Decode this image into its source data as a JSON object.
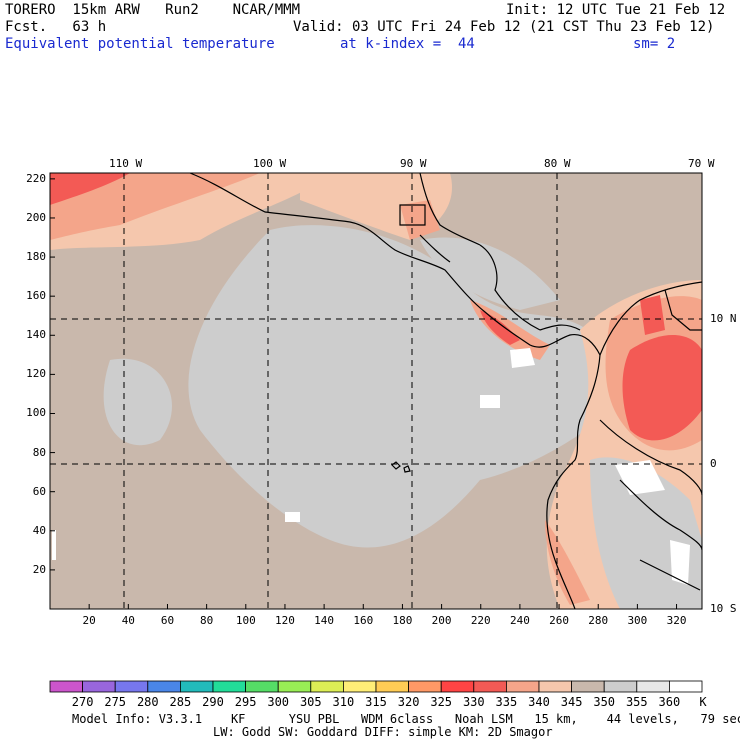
{
  "header": {
    "model": "TORERO  15km ARW   Run2    NCAR/MMM",
    "init": "Init: 12 UTC Tue 21 Feb 12",
    "fcst": "Fcst.   63 h",
    "valid": "Valid: 03 UTC Fri 24 Feb 12 (21 CST Thu 23 Feb 12)",
    "field": "Equivalent potential temperature",
    "level": "at k-index =  44",
    "smooth": "sm= 2"
  },
  "map": {
    "lon_labels": [
      "110 W",
      "100 W",
      "90 W",
      "80 W",
      "70 W"
    ],
    "lat_labels": [
      "10 N",
      "0",
      "10 S"
    ],
    "x_ticks": [
      "20",
      "40",
      "60",
      "80",
      "100",
      "120",
      "140",
      "160",
      "180",
      "200",
      "220",
      "240",
      "260",
      "280",
      "300",
      "320"
    ],
    "y_ticks": [
      "220",
      "200",
      "180",
      "160",
      "140",
      "120",
      "100",
      "80",
      "60",
      "40",
      "20"
    ],
    "colors": {
      "background": "#c9b8ac",
      "cool": "#cdcdcd",
      "warm": "#f5c7ad",
      "warmer": "#f4a58a",
      "hot": "#f35a55",
      "white": "#ffffff",
      "coast": "#000000"
    }
  },
  "colorbar": {
    "colors": [
      "#cc55cc",
      "#9966dd",
      "#7777ee",
      "#4a86e8",
      "#22bbbb",
      "#22dd99",
      "#55dd66",
      "#99ee55",
      "#ddee55",
      "#ffee77",
      "#ffcc55",
      "#ff9966",
      "#ff4444",
      "#f35a55",
      "#f5a58a",
      "#f5c7ad",
      "#c9b8ac",
      "#cdcdcd",
      "#e8e8e8",
      "#ffffff"
    ],
    "labels": [
      "270",
      "275",
      "280",
      "285",
      "290",
      "295",
      "300",
      "305",
      "310",
      "315",
      "320",
      "325",
      "330",
      "335",
      "340",
      "345",
      "350",
      "355",
      "360"
    ],
    "unit": "K"
  },
  "footer": {
    "line1": "Model Info: V3.3.1    KF      YSU PBL   WDM 6class   Noah LSM   15 km,    44 levels,   79 sec",
    "line2": "LW: Godd SW: Goddard DIFF: simple KM: 2D Smagor"
  }
}
